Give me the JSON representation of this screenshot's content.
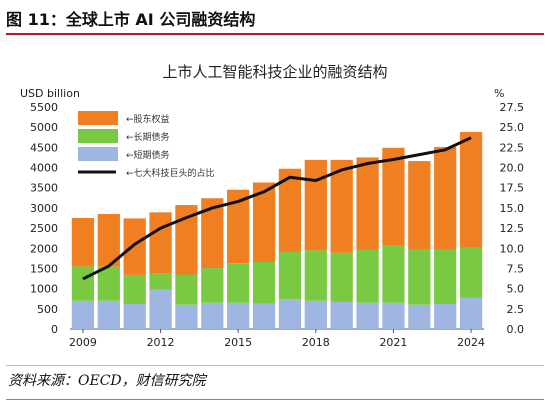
{
  "figure": {
    "title": "图 11：全球上市 AI 公司融资结构",
    "source": "资料来源：OECD，财信研究院"
  },
  "chart_data": {
    "type": "bar",
    "stacked": true,
    "title": "上市人工智能科技企业的融资结构",
    "y_left_label": "USD billion",
    "y_right_label": "%",
    "ylim_left": [
      0,
      5500
    ],
    "ylim_right": [
      0,
      27.5
    ],
    "y_left_ticks": [
      "0",
      "500",
      "1000",
      "1500",
      "2000",
      "2500",
      "3000",
      "3500",
      "4000",
      "4500",
      "5000",
      "5500"
    ],
    "y_right_ticks": [
      "0.0",
      "2.5",
      "5.0",
      "7.5",
      "10.0",
      "12.5",
      "15.0",
      "17.5",
      "20.0",
      "22.5",
      "25.0",
      "27.5"
    ],
    "x_tick_labels": [
      "2009",
      "2012",
      "2015",
      "2018",
      "2021",
      "2024"
    ],
    "x_tick_years": [
      2009,
      2012,
      2015,
      2018,
      2021,
      2024
    ],
    "categories": [
      2009,
      2010,
      2011,
      2012,
      2013,
      2014,
      2015,
      2016,
      2017,
      2018,
      2019,
      2020,
      2021,
      2022,
      2023,
      2024
    ],
    "series": [
      {
        "name": "短期债务",
        "color": "#9fb6e3",
        "axis": "left",
        "values": [
          700,
          700,
          620,
          970,
          600,
          650,
          650,
          630,
          740,
          700,
          670,
          650,
          650,
          600,
          620,
          780
        ]
      },
      {
        "name": "长期债务",
        "color": "#7ac943",
        "axis": "left",
        "values": [
          850,
          850,
          720,
          400,
          750,
          860,
          980,
          1030,
          1180,
          1250,
          1220,
          1320,
          1420,
          1360,
          1340,
          1230
        ]
      },
      {
        "name": "股东权益",
        "color": "#f07f22",
        "axis": "left",
        "values": [
          1200,
          1300,
          1400,
          1520,
          1720,
          1730,
          1820,
          1970,
          2050,
          2240,
          2300,
          2280,
          2420,
          2200,
          2550,
          2870
        ]
      },
      {
        "name": "七大科技巨头的占比",
        "color": "#111111",
        "axis": "right",
        "type": "line",
        "values": [
          6.2,
          7.8,
          10.5,
          12.5,
          13.8,
          15.0,
          15.8,
          17.0,
          18.8,
          18.4,
          19.7,
          20.5,
          21.0,
          21.6,
          22.2,
          23.7
        ]
      }
    ],
    "legend": {
      "placement": "top-left",
      "order": [
        "股东权益",
        "长期债务",
        "短期债务",
        "七大科技巨头的占比"
      ]
    },
    "grid": false
  }
}
